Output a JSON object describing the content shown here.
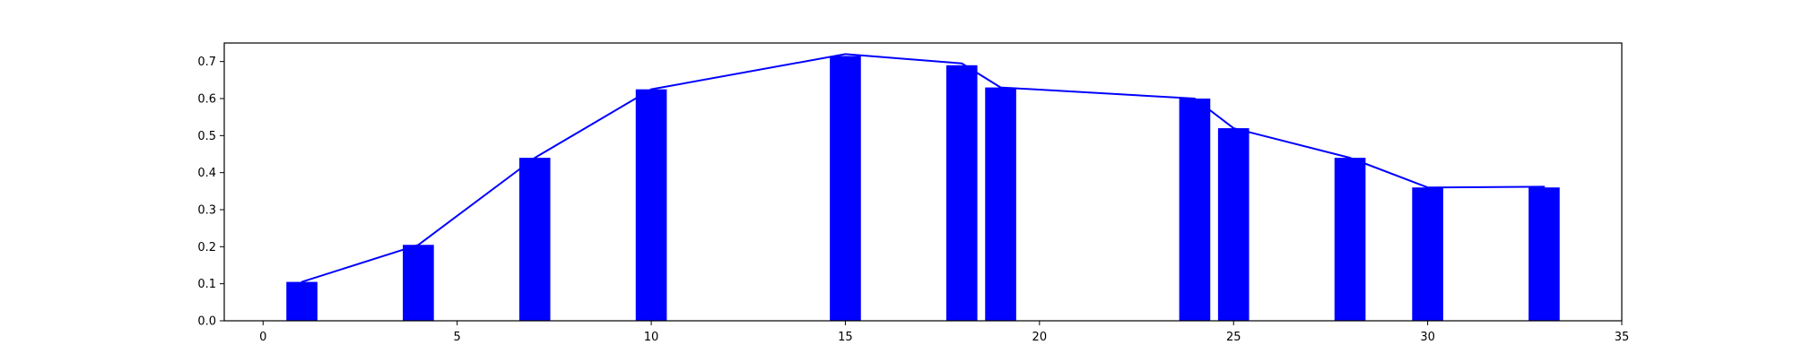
{
  "chart_data": {
    "type": "bar",
    "title": "",
    "xlabel": "",
    "ylabel": "",
    "xlim": [
      -1,
      35
    ],
    "ylim": [
      0,
      0.75
    ],
    "grid": false,
    "legend": "none",
    "x_ticks": [
      0,
      5,
      10,
      15,
      20,
      25,
      30,
      35
    ],
    "y_ticks": [
      0.0,
      0.1,
      0.2,
      0.3,
      0.4,
      0.5,
      0.6,
      0.7
    ],
    "x_tick_labels": [
      "0",
      "5",
      "10",
      "15",
      "20",
      "25",
      "30",
      "35"
    ],
    "y_tick_labels": [
      "0.0",
      "0.1",
      "0.2",
      "0.3",
      "0.4",
      "0.5",
      "0.6",
      "0.7"
    ],
    "bar_width": 0.8,
    "x": [
      1,
      4,
      7,
      10,
      15,
      18,
      19,
      24,
      25,
      28,
      30,
      33
    ],
    "values": [
      0.105,
      0.205,
      0.44,
      0.625,
      0.715,
      0.69,
      0.63,
      0.6,
      0.52,
      0.44,
      0.36,
      0.36
    ],
    "line": {
      "x": [
        1,
        4,
        7,
        10,
        15,
        18,
        19,
        24,
        25,
        28,
        30,
        33
      ],
      "y": [
        0.105,
        0.205,
        0.44,
        0.625,
        0.72,
        0.695,
        0.63,
        0.6,
        0.52,
        0.44,
        0.36,
        0.362
      ]
    },
    "colors": {
      "bar": "#0000ff",
      "line": "#0000ff",
      "axes": "#000000"
    }
  }
}
